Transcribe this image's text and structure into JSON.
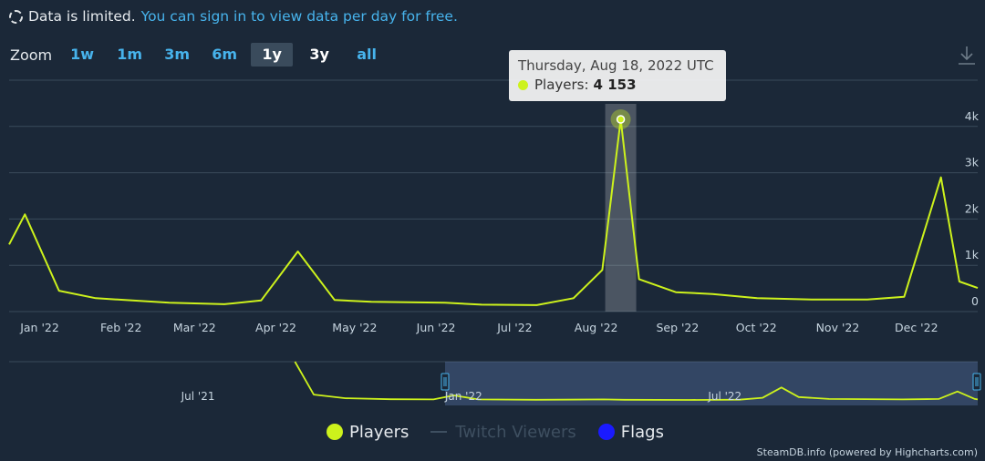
{
  "notice": {
    "limited_text": "Data is limited.",
    "link_text": "You can sign in to view data per day for free."
  },
  "zoom": {
    "label": "Zoom",
    "buttons": [
      "1w",
      "1m",
      "3m",
      "6m",
      "1y",
      "3y",
      "all"
    ],
    "active": "1y"
  },
  "tooltip": {
    "date": "Thursday, Aug 18, 2022 UTC",
    "series_label": "Players:",
    "value": "4 153"
  },
  "legend": [
    {
      "name": "Players",
      "color": "#cdf21c",
      "type": "dot",
      "visible": true
    },
    {
      "name": "Twitch Viewers",
      "color": "#3e4f60",
      "type": "line",
      "visible": false
    },
    {
      "name": "Flags",
      "color": "#1a1aff",
      "type": "dot",
      "visible": true
    }
  ],
  "credits": "SteamDB.info (powered by Highcharts.com)",
  "colors": {
    "background": "#1b2838",
    "series": "#cdf21c",
    "link": "#47b3ec",
    "gridline": "#3a4a5a"
  },
  "chart_data": {
    "type": "line",
    "title": "",
    "xlabel": "",
    "ylabel": "",
    "ylim": [
      0,
      5000
    ],
    "y_ticks": [
      "0",
      "1k",
      "2k",
      "3k",
      "4k"
    ],
    "x_ticks": [
      "Jan '22",
      "Feb '22",
      "Mar '22",
      "Apr '22",
      "May '22",
      "Jun '22",
      "Jul '22",
      "Aug '22",
      "Sep '22",
      "Oct '22",
      "Nov '22",
      "Dec '22"
    ],
    "x_range": [
      "2021-12-28",
      "2023-01-01"
    ],
    "series": [
      {
        "name": "Players",
        "color": "#cdf21c",
        "points": [
          [
            "2021-12-28",
            1450
          ],
          [
            "2022-01-03",
            2100
          ],
          [
            "2022-01-16",
            450
          ],
          [
            "2022-01-30",
            290
          ],
          [
            "2022-02-27",
            190
          ],
          [
            "2022-03-20",
            160
          ],
          [
            "2022-04-03",
            240
          ],
          [
            "2022-04-17",
            1300
          ],
          [
            "2022-05-01",
            250
          ],
          [
            "2022-05-15",
            210
          ],
          [
            "2022-06-12",
            190
          ],
          [
            "2022-06-26",
            150
          ],
          [
            "2022-07-17",
            140
          ],
          [
            "2022-07-31",
            290
          ],
          [
            "2022-08-11",
            900
          ],
          [
            "2022-08-18",
            4153
          ],
          [
            "2022-08-25",
            700
          ],
          [
            "2022-09-08",
            420
          ],
          [
            "2022-09-22",
            380
          ],
          [
            "2022-10-09",
            290
          ],
          [
            "2022-10-30",
            260
          ],
          [
            "2022-11-20",
            260
          ],
          [
            "2022-12-04",
            320
          ],
          [
            "2022-12-18",
            2900
          ],
          [
            "2022-12-25",
            650
          ],
          [
            "2023-01-01",
            510
          ]
        ]
      }
    ],
    "navigator": {
      "x_ticks": [
        "Jul '21",
        "Jan '22",
        "Jul '22"
      ],
      "x_range": [
        "2021-03-01",
        "2023-01-01"
      ],
      "selected_range": [
        "2021-12-28",
        "2023-01-01"
      ],
      "points": [
        [
          "2021-09-15",
          5500
        ],
        [
          "2021-09-28",
          900
        ],
        [
          "2021-10-20",
          450
        ],
        [
          "2021-11-20",
          320
        ],
        [
          "2021-12-20",
          300
        ],
        [
          "2022-01-03",
          800
        ],
        [
          "2022-01-20",
          300
        ],
        [
          "2022-03-01",
          250
        ],
        [
          "2022-04-17",
          300
        ],
        [
          "2022-05-01",
          250
        ],
        [
          "2022-06-15",
          230
        ],
        [
          "2022-07-20",
          260
        ],
        [
          "2022-08-05",
          500
        ],
        [
          "2022-08-18",
          1800
        ],
        [
          "2022-08-30",
          600
        ],
        [
          "2022-09-20",
          350
        ],
        [
          "2022-11-10",
          300
        ],
        [
          "2022-12-05",
          350
        ],
        [
          "2022-12-18",
          1300
        ],
        [
          "2022-12-30",
          350
        ],
        [
          "2023-01-01",
          300
        ]
      ]
    }
  }
}
